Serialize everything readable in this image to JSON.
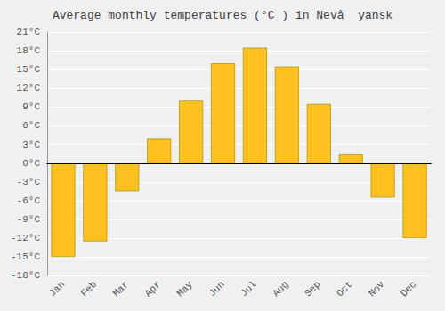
{
  "chart_data": {
    "type": "bar",
    "title": "Average monthly temperatures (°C ) in Nevå  yansk",
    "categories": [
      "Jan",
      "Feb",
      "Mar",
      "Apr",
      "May",
      "Jun",
      "Jul",
      "Aug",
      "Sep",
      "Oct",
      "Nov",
      "Dec"
    ],
    "values": [
      -15,
      -12.5,
      -4.5,
      4,
      10,
      16,
      18.5,
      15.5,
      9.5,
      1.5,
      -5.5,
      -12
    ],
    "color": "#FFC020",
    "ylim": [
      -18,
      21
    ],
    "yticks": [
      {
        "value": -18,
        "label": "-18°C"
      },
      {
        "value": -15,
        "label": "-15°C"
      },
      {
        "value": -12,
        "label": "-12°C"
      },
      {
        "value": -9,
        "label": "-9°C"
      },
      {
        "value": -6,
        "label": "-6°C"
      },
      {
        "value": -3,
        "label": "-3°C"
      },
      {
        "value": 0,
        "label": "0°C"
      },
      {
        "value": 3,
        "label": "3°C"
      },
      {
        "value": 6,
        "label": "6°C"
      },
      {
        "value": 9,
        "label": "9°C"
      },
      {
        "value": 12,
        "label": "12°C"
      },
      {
        "value": 15,
        "label": "15°C"
      },
      {
        "value": 18,
        "label": "18°C"
      },
      {
        "value": 21,
        "label": "21°C"
      }
    ],
    "grid": true
  }
}
